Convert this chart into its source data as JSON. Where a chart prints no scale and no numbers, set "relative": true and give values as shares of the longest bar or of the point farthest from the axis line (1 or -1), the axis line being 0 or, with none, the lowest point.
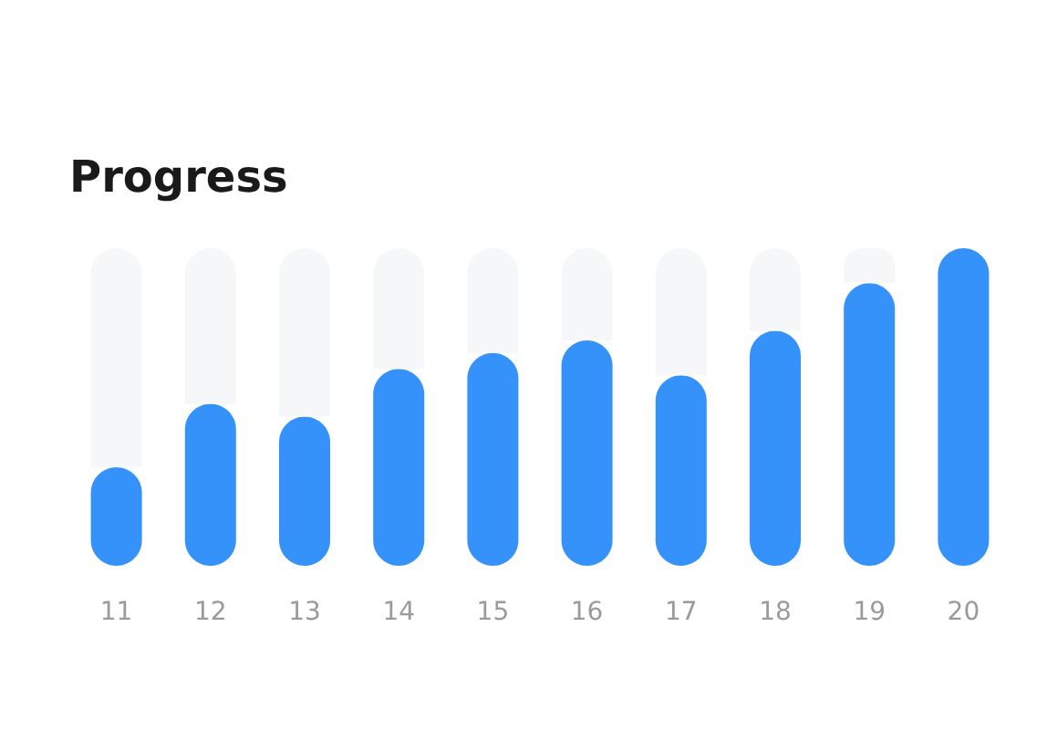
{
  "chart_data": {
    "type": "bar",
    "title": "Progress",
    "relative": true,
    "stacked": true,
    "categories": [
      "11",
      "12",
      "13",
      "14",
      "15",
      "16",
      "17",
      "18",
      "19",
      "20"
    ],
    "series": [
      {
        "color": "#3592fb",
        "values": [
          0.31,
          0.51,
          0.47,
          0.62,
          0.67,
          0.71,
          0.6,
          0.74,
          0.89,
          1.0
        ]
      },
      {
        "color": "#f5f7f9",
        "values": [
          0.69,
          0.49,
          0.53,
          0.38,
          0.33,
          0.29,
          0.4,
          0.26,
          0.11,
          0
        ]
      }
    ]
  }
}
